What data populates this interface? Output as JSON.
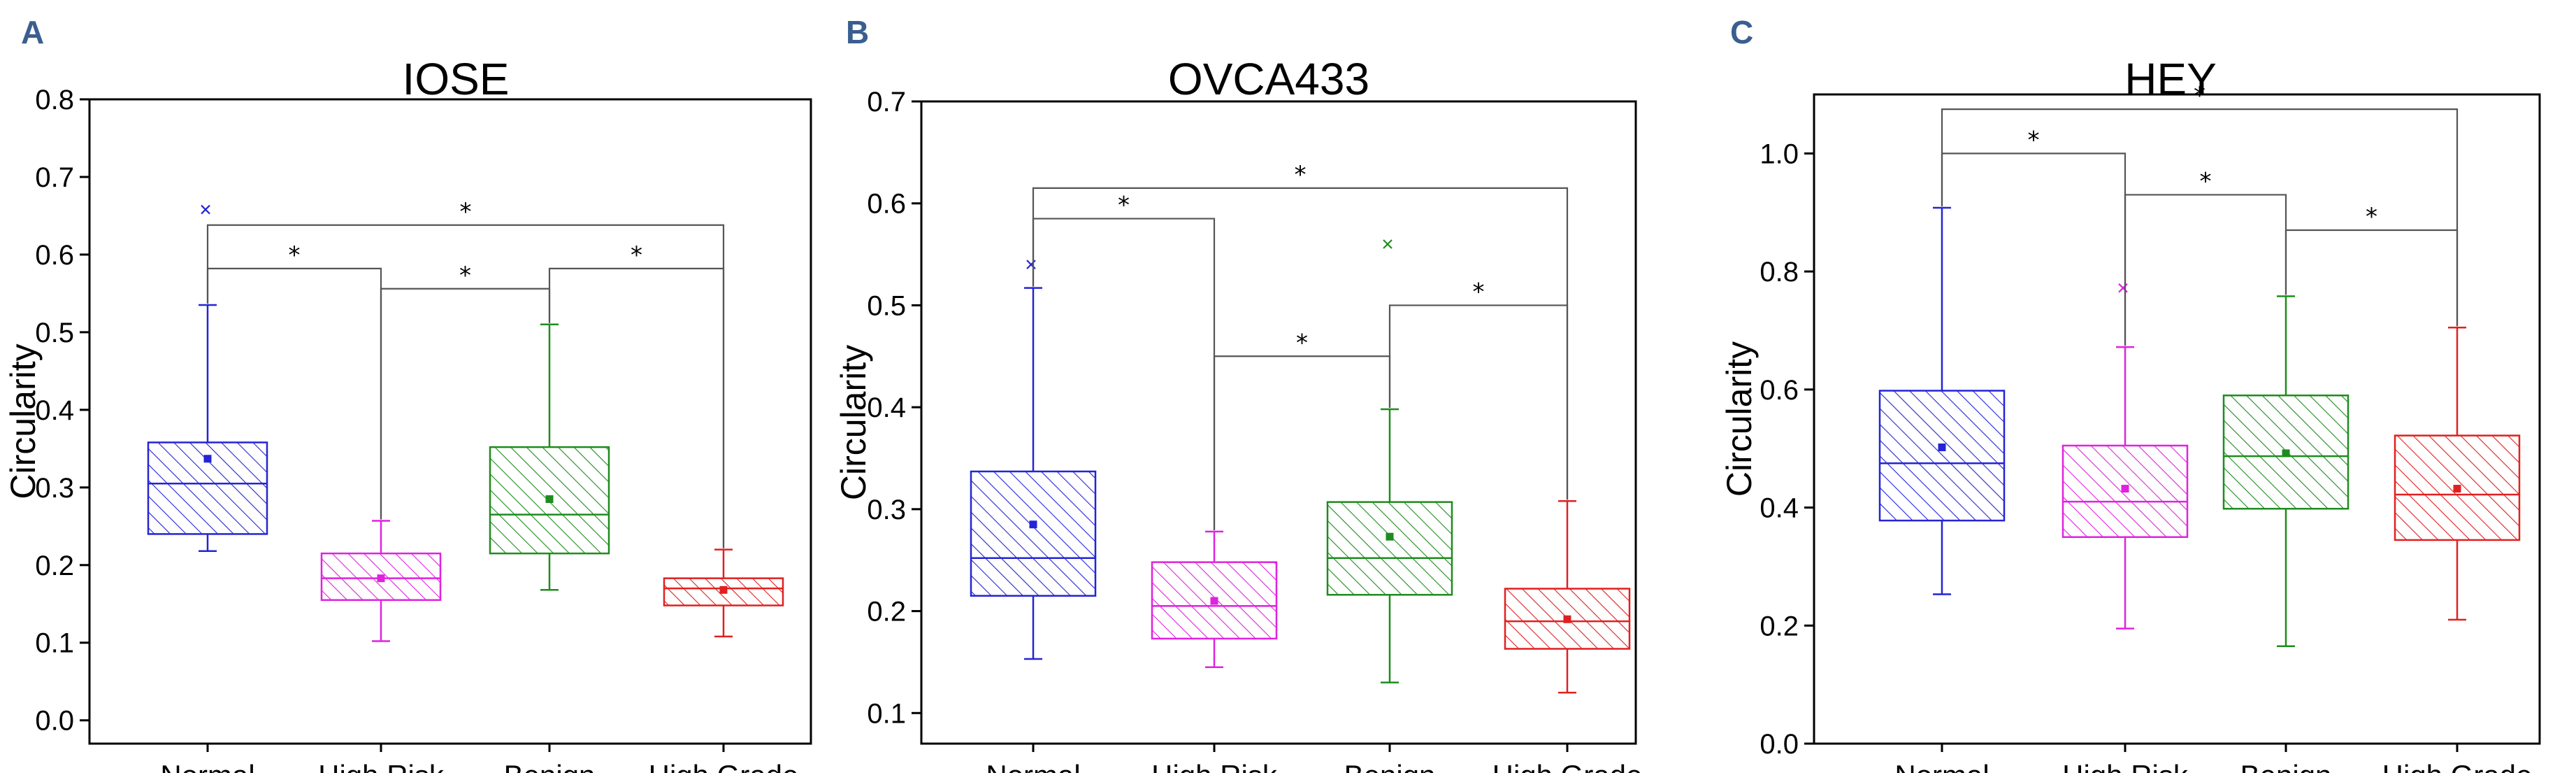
{
  "chart_data": [
    {
      "type": "box",
      "panel_letter": "A",
      "title": "IOSE",
      "xlabel": "",
      "ylabel": "Circularity",
      "ylim": [
        -0.03,
        0.8
      ],
      "yticks": [
        0.0,
        0.1,
        0.2,
        0.3,
        0.4,
        0.5,
        0.6,
        0.7,
        0.8
      ],
      "tick_decimals": 1,
      "categories": [
        "Normal",
        "High Risk",
        "Benign",
        "High Grade"
      ],
      "colors": [
        "#2424d6",
        "#e022e0",
        "#1e8c1e",
        "#e02020"
      ],
      "boxes": [
        {
          "q1": 0.24,
          "median": 0.305,
          "q3": 0.358,
          "mean": 0.337,
          "whisker_low": 0.218,
          "whisker_high": 0.535,
          "outliers": [
            0.658
          ]
        },
        {
          "q1": 0.155,
          "median": 0.183,
          "q3": 0.215,
          "mean": 0.183,
          "whisker_low": 0.102,
          "whisker_high": 0.257,
          "outliers": []
        },
        {
          "q1": 0.215,
          "median": 0.265,
          "q3": 0.352,
          "mean": 0.285,
          "whisker_low": 0.168,
          "whisker_high": 0.51,
          "outliers": []
        },
        {
          "q1": 0.148,
          "median": 0.17,
          "q3": 0.183,
          "mean": 0.168,
          "whisker_low": 0.108,
          "whisker_high": 0.22,
          "outliers": []
        }
      ],
      "significance": [
        {
          "from": 0,
          "to": 3,
          "y": 0.638,
          "label": "*"
        },
        {
          "from": 0,
          "to": 1,
          "y": 0.582,
          "label": "*"
        },
        {
          "from": 2,
          "to": 3,
          "y": 0.582,
          "label": "*"
        },
        {
          "from": 1,
          "to": 2,
          "y": 0.556,
          "label": "*"
        }
      ]
    },
    {
      "type": "box",
      "panel_letter": "B",
      "title": "OVCA433",
      "xlabel": "",
      "ylabel": "Circularity",
      "ylim": [
        0.07,
        0.7
      ],
      "yticks": [
        0.1,
        0.2,
        0.3,
        0.4,
        0.5,
        0.6,
        0.7
      ],
      "tick_decimals": 1,
      "categories": [
        "Normal",
        "High Risk",
        "Benign",
        "High Grade"
      ],
      "colors": [
        "#2424d6",
        "#e022e0",
        "#1e8c1e",
        "#e02020"
      ],
      "boxes": [
        {
          "q1": 0.215,
          "median": 0.252,
          "q3": 0.337,
          "mean": 0.285,
          "whisker_low": 0.153,
          "whisker_high": 0.517,
          "outliers": [
            0.54
          ]
        },
        {
          "q1": 0.173,
          "median": 0.205,
          "q3": 0.248,
          "mean": 0.21,
          "whisker_low": 0.145,
          "whisker_high": 0.278,
          "outliers": []
        },
        {
          "q1": 0.216,
          "median": 0.252,
          "q3": 0.307,
          "mean": 0.273,
          "whisker_low": 0.13,
          "whisker_high": 0.398,
          "outliers": [
            0.56
          ]
        },
        {
          "q1": 0.163,
          "median": 0.19,
          "q3": 0.222,
          "mean": 0.192,
          "whisker_low": 0.12,
          "whisker_high": 0.308,
          "outliers": []
        }
      ],
      "significance": [
        {
          "from": 0,
          "to": 3,
          "y": 0.615,
          "label": "*"
        },
        {
          "from": 0,
          "to": 1,
          "y": 0.585,
          "label": "*"
        },
        {
          "from": 2,
          "to": 3,
          "y": 0.5,
          "label": "*"
        },
        {
          "from": 1,
          "to": 2,
          "y": 0.45,
          "label": "*"
        }
      ]
    },
    {
      "type": "box",
      "panel_letter": "C",
      "title": "HEY",
      "xlabel": "",
      "ylabel": "Circularity",
      "ylim": [
        0.0,
        1.1
      ],
      "yticks": [
        0.0,
        0.2,
        0.4,
        0.6,
        0.8,
        1.0
      ],
      "tick_decimals": 1,
      "categories": [
        "Normal",
        "High Risk",
        "Benign",
        "High Grade"
      ],
      "colors": [
        "#2424d6",
        "#e022e0",
        "#1e8c1e",
        "#e02020"
      ],
      "boxes": [
        {
          "q1": 0.378,
          "median": 0.475,
          "q3": 0.598,
          "mean": 0.502,
          "whisker_low": 0.253,
          "whisker_high": 0.908,
          "outliers": []
        },
        {
          "q1": 0.35,
          "median": 0.41,
          "q3": 0.505,
          "mean": 0.432,
          "whisker_low": 0.195,
          "whisker_high": 0.672,
          "outliers": [
            0.772
          ]
        },
        {
          "q1": 0.398,
          "median": 0.487,
          "q3": 0.59,
          "mean": 0.492,
          "whisker_low": 0.165,
          "whisker_high": 0.758,
          "outliers": []
        },
        {
          "q1": 0.345,
          "median": 0.422,
          "q3": 0.522,
          "mean": 0.432,
          "whisker_low": 0.21,
          "whisker_high": 0.705,
          "outliers": []
        }
      ],
      "significance": [
        {
          "from": 0,
          "to": 3,
          "y": 1.075,
          "label": "*"
        },
        {
          "from": 0,
          "to": 1,
          "y": 1.0,
          "label": "*"
        },
        {
          "from": 1,
          "to": 2,
          "y": 0.93,
          "label": "*"
        },
        {
          "from": 2,
          "to": 3,
          "y": 0.87,
          "label": "*"
        }
      ]
    }
  ]
}
